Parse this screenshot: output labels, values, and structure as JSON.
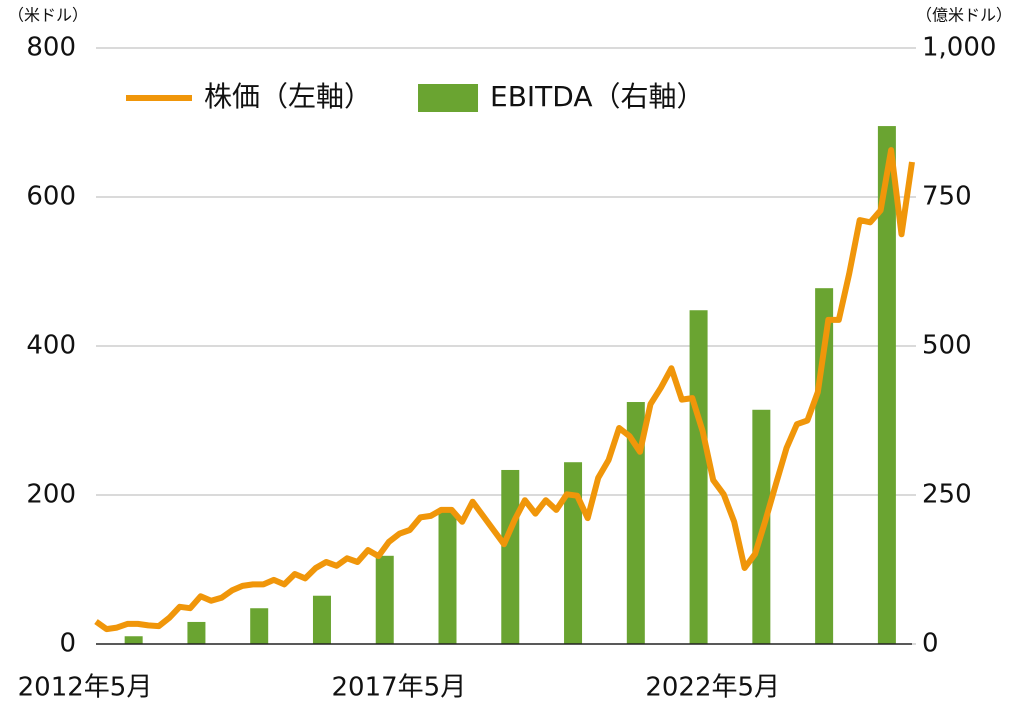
{
  "chart_data": {
    "type": "bar-line",
    "y_unit": "（米ドル）",
    "y2_unit": "（億米ドル）",
    "categories": [
      "2012年5月",
      null,
      null,
      null,
      null,
      null,
      null,
      null,
      null,
      null,
      null,
      null,
      null,
      null,
      null,
      null,
      null,
      null,
      null,
      null,
      null,
      null,
      null,
      null,
      null,
      null,
      null,
      null,
      null,
      null,
      "2017年5月",
      null,
      null,
      null,
      null,
      null,
      null,
      null,
      null,
      null,
      null,
      null,
      null,
      null,
      null,
      null,
      null,
      null,
      null,
      null,
      null,
      null,
      null,
      null,
      null,
      null,
      null,
      null,
      null,
      null,
      "2022年5月",
      null,
      null,
      null,
      null,
      null,
      null,
      null,
      null,
      null,
      null,
      null,
      null,
      null,
      null,
      null,
      null,
      null,
      null
    ],
    "series": [
      {
        "name": "株価（左軸）",
        "type": "line",
        "axis": "y",
        "color": "#f0960a",
        "values": [
          30,
          20,
          22,
          27,
          27,
          25,
          24,
          35,
          50,
          48,
          64,
          58,
          62,
          72,
          78,
          80,
          80,
          86,
          80,
          94,
          88,
          102,
          110,
          105,
          115,
          110,
          126,
          118,
          137,
          148,
          153,
          170,
          172,
          180,
          180,
          164,
          191,
          172,
          153,
          134,
          166,
          193,
          175,
          193,
          180,
          201,
          199,
          169,
          223,
          247,
          290,
          279,
          258,
          322,
          344,
          370,
          328,
          330,
          285,
          220,
          201,
          164,
          102,
          121,
          166,
          215,
          263,
          295,
          300,
          338,
          435,
          435,
          497,
          569,
          566,
          582,
          663,
          550,
          647
        ]
      },
      {
        "name": "EBITDA（右軸）",
        "type": "bar",
        "axis": "y2",
        "color": "#6aa431",
        "values": [
          null,
          null,
          null,
          13,
          null,
          null,
          null,
          null,
          null,
          37,
          null,
          null,
          null,
          null,
          null,
          60,
          null,
          null,
          null,
          null,
          null,
          81,
          null,
          null,
          null,
          null,
          null,
          148,
          null,
          null,
          null,
          null,
          null,
          221,
          null,
          null,
          null,
          null,
          null,
          292,
          null,
          null,
          null,
          null,
          null,
          305,
          null,
          null,
          null,
          null,
          null,
          406,
          null,
          null,
          null,
          null,
          null,
          560,
          null,
          null,
          null,
          null,
          null,
          393,
          null,
          null,
          null,
          null,
          null,
          597,
          null,
          null,
          null,
          null,
          null,
          869,
          null,
          null,
          null
        ]
      }
    ],
    "ylim": [
      0,
      800
    ],
    "yticks": [
      0,
      200,
      400,
      600,
      800
    ],
    "y2lim": [
      0,
      1000
    ],
    "y2ticks": [
      0,
      250,
      500,
      750,
      {
        "value": 1000,
        "label": "1,000"
      }
    ],
    "grid": true,
    "legend": "top"
  }
}
